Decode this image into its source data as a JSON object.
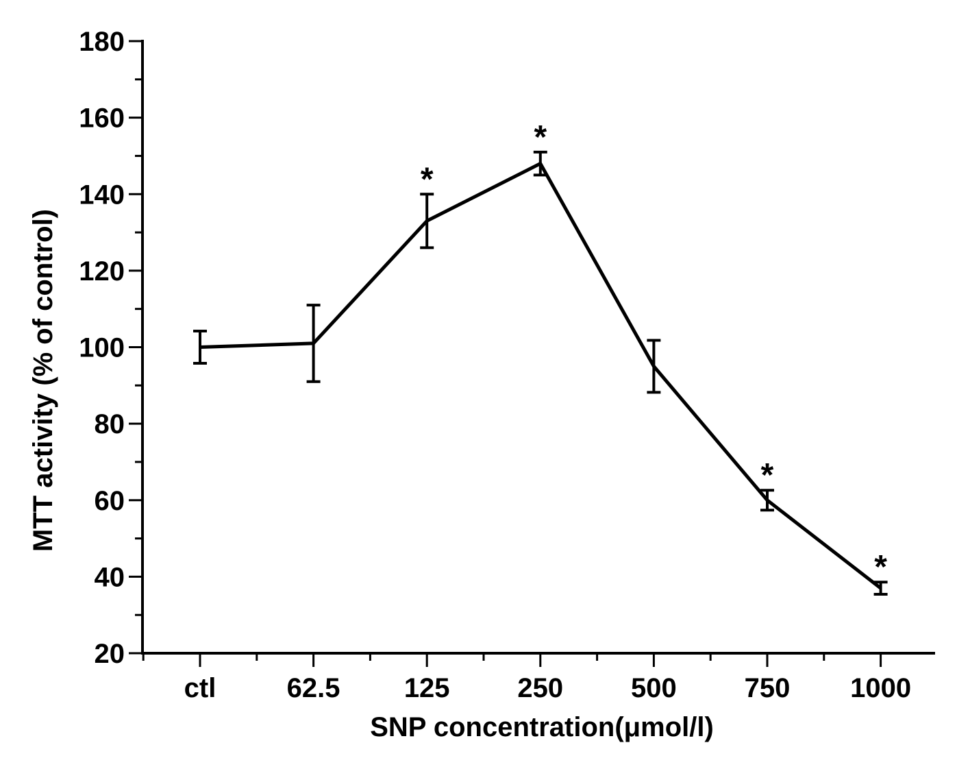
{
  "chart_data": {
    "type": "line",
    "title": "",
    "xlabel": "SNP concentration(μmol/l)",
    "ylabel": "MTT activity (% of control)",
    "ylim": [
      20,
      180
    ],
    "yticks": [
      20,
      40,
      60,
      80,
      100,
      120,
      140,
      160,
      180
    ],
    "categories": [
      "ctl",
      "62.5",
      "125",
      "250",
      "500",
      "750",
      "1000"
    ],
    "series": [
      {
        "name": "MTT activity",
        "values": [
          100,
          101,
          133,
          148,
          95,
          60,
          37
        ],
        "errors": [
          4.2,
          10,
          7,
          3,
          6.8,
          2.6,
          1.6
        ],
        "significant": [
          false,
          false,
          true,
          true,
          false,
          true,
          true
        ]
      }
    ],
    "significance_marker": "*",
    "grid": false,
    "legend": "none",
    "colors": {
      "line": "#000000",
      "axis": "#000000"
    }
  }
}
